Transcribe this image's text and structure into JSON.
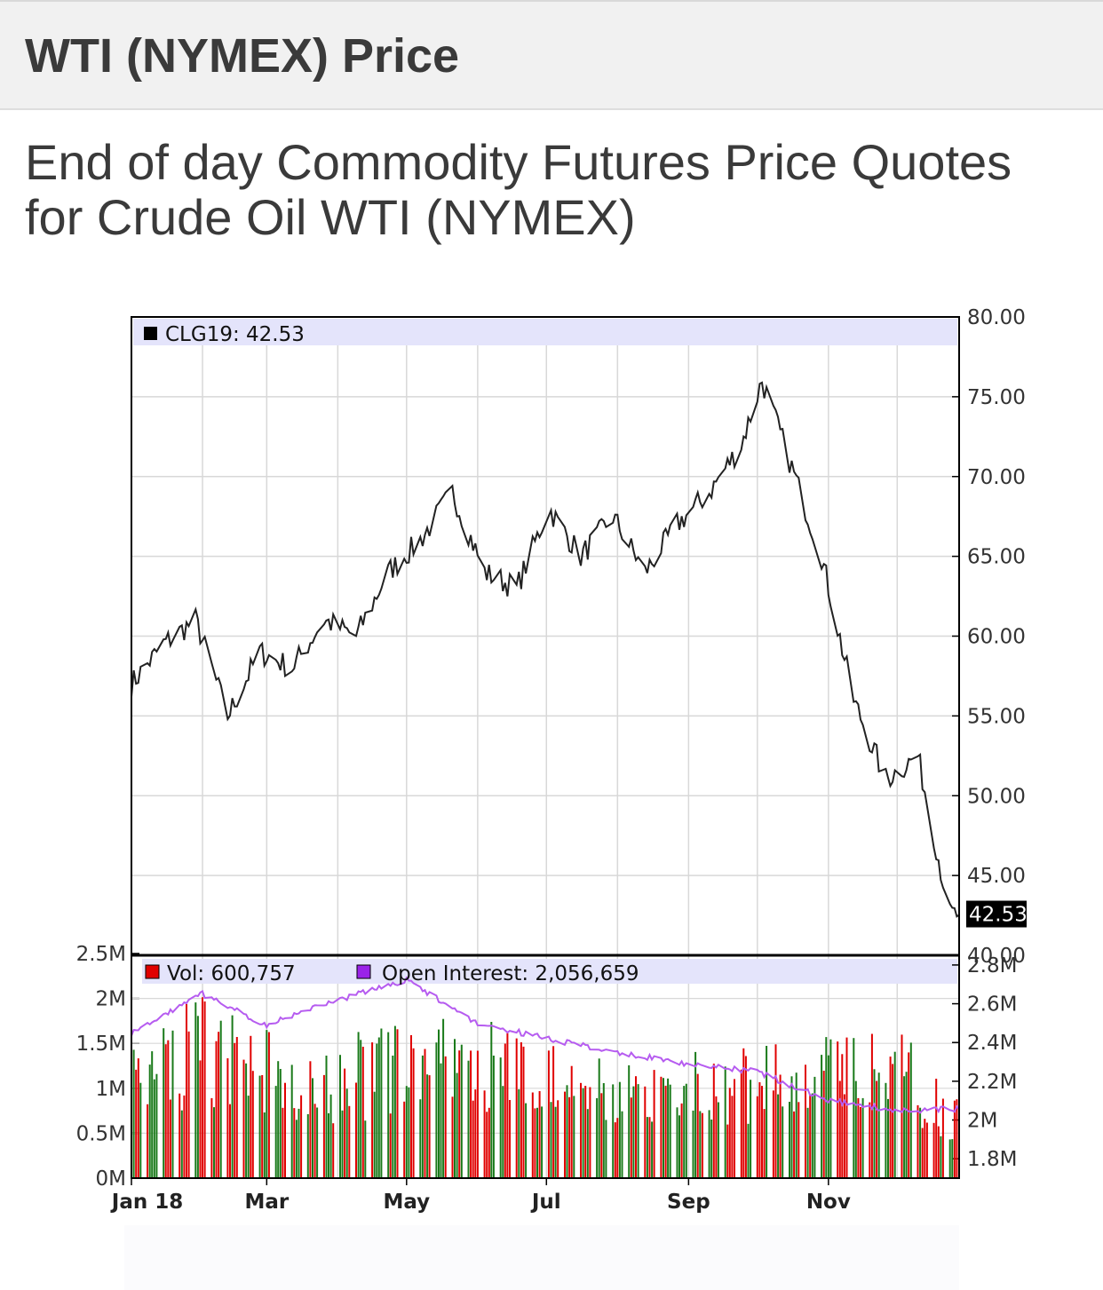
{
  "header": {
    "title": "WTI (NYMEX) Price"
  },
  "subtitle": "End of day Commodity Futures Price Quotes for Crude Oil WTI (NYMEX)",
  "colors": {
    "price_line": "#222222",
    "volume_up": "#1a7a1a",
    "volume_down": "#e00000",
    "open_interest": "#b65cf0",
    "legend_band": "#e4e4fb",
    "grid": "#d8d8d8"
  },
  "chart_data": [
    {
      "type": "line",
      "legend": {
        "symbol": "CLG19",
        "value": "42.53",
        "label": "CLG19: 42.53"
      },
      "last_price_label": "42.53",
      "ylim": [
        40,
        80
      ],
      "y_ticks": [
        "80.00",
        "75.00",
        "70.00",
        "65.00",
        "60.00",
        "55.00",
        "50.00",
        "45.00",
        "40.00"
      ],
      "x": [
        "2018-01-01",
        "2018-01-15",
        "2018-01-29",
        "2018-02-12",
        "2018-02-26",
        "2018-03-12",
        "2018-03-26",
        "2018-04-09",
        "2018-04-23",
        "2018-05-07",
        "2018-05-21",
        "2018-06-04",
        "2018-06-18",
        "2018-07-02",
        "2018-07-16",
        "2018-07-30",
        "2018-08-13",
        "2018-08-27",
        "2018-09-10",
        "2018-09-24",
        "2018-10-03",
        "2018-10-15",
        "2018-10-29",
        "2018-11-12",
        "2018-11-26",
        "2018-12-10",
        "2018-12-24"
      ],
      "series": [
        {
          "values": [
            57.0,
            59.5,
            61.0,
            55.0,
            59.0,
            58.0,
            61.0,
            60.0,
            64.0,
            66.0,
            69.0,
            64.0,
            63.0,
            68.0,
            65.0,
            67.5,
            64.0,
            67.0,
            69.0,
            72.0,
            76.0,
            71.0,
            65.0,
            56.0,
            51.0,
            52.5,
            42.53
          ]
        }
      ],
      "grid": true,
      "axis_side": "right"
    },
    {
      "type": "bar",
      "legend": [
        {
          "name": "Vol",
          "value": "600,757",
          "label": "Vol: 600,757",
          "color": "#e00000"
        },
        {
          "name": "Open Interest",
          "value": "2,056,659",
          "label": "Open Interest: 2,056,659",
          "color": "#9a22e8"
        }
      ],
      "left_ticks": [
        "2.5M",
        "2M",
        "1.5M",
        "1M",
        "0.5M",
        "0M"
      ],
      "right_ticks": [
        "2.8M",
        "2.6M",
        "2.4M",
        "2.2M",
        "2M",
        "1.8M"
      ],
      "volume_ylim": [
        0,
        2500000
      ],
      "open_interest_ylim": [
        1700000,
        2850000
      ],
      "x_tick_labels": [
        "Jan 18",
        "Mar",
        "May",
        "Jul",
        "Sep",
        "Nov"
      ],
      "x": [
        "2018-01-01",
        "2018-02-01",
        "2018-03-01",
        "2018-04-01",
        "2018-05-01",
        "2018-06-01",
        "2018-07-01",
        "2018-08-01",
        "2018-09-01",
        "2018-10-01",
        "2018-11-01",
        "2018-12-01",
        "2018-12-28"
      ],
      "volume_values": [
        1100000,
        1450000,
        1150000,
        1100000,
        1200000,
        1250000,
        1050000,
        900000,
        1000000,
        1050000,
        1100000,
        1200000,
        600757
      ],
      "open_interest_values": [
        2450000,
        2650000,
        2490000,
        2620000,
        2720000,
        2500000,
        2420000,
        2350000,
        2290000,
        2250000,
        2100000,
        2050000,
        2056659
      ],
      "grid": true
    }
  ]
}
